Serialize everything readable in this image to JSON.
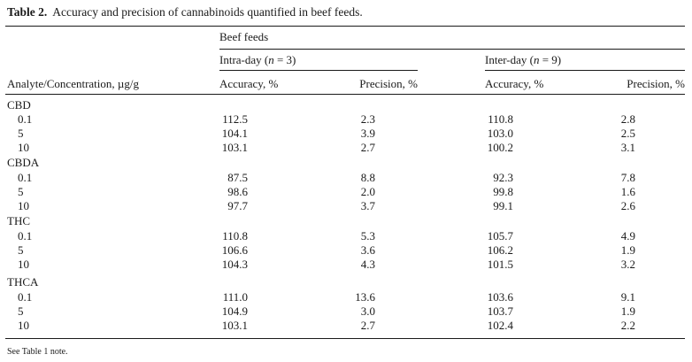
{
  "caption": {
    "label": "Table 2.",
    "text": "Accuracy and precision of cannabinoids quantified in beef feeds."
  },
  "header": {
    "group_label": "Beef feeds",
    "intra_prefix": "Intra-day (",
    "intra_n": "n",
    "intra_suffix": " = 3)",
    "inter_prefix": "Inter-day (",
    "inter_n": "n",
    "inter_suffix": " = 9)",
    "analyte_col": "Analyte/Concentration, µg/g",
    "accuracy": "Accuracy, %",
    "precision": "Precision, %"
  },
  "groups": [
    {
      "name": "CBD",
      "rows": [
        {
          "conc": "0.1",
          "intra_acc": "112.5",
          "intra_prec": "2.3",
          "inter_acc": "110.8",
          "inter_prec": "2.8"
        },
        {
          "conc": "5",
          "intra_acc": "104.1",
          "intra_prec": "3.9",
          "inter_acc": "103.0",
          "inter_prec": "2.5"
        },
        {
          "conc": "10",
          "intra_acc": "103.1",
          "intra_prec": "2.7",
          "inter_acc": "100.2",
          "inter_prec": "3.1"
        }
      ]
    },
    {
      "name": "CBDA",
      "rows": [
        {
          "conc": "0.1",
          "intra_acc": "87.5",
          "intra_prec": "8.8",
          "inter_acc": "92.3",
          "inter_prec": "7.8"
        },
        {
          "conc": "5",
          "intra_acc": "98.6",
          "intra_prec": "2.0",
          "inter_acc": "99.8",
          "inter_prec": "1.6"
        },
        {
          "conc": "10",
          "intra_acc": "97.7",
          "intra_prec": "3.7",
          "inter_acc": "99.1",
          "inter_prec": "2.6"
        }
      ]
    },
    {
      "name": "THC",
      "rows": [
        {
          "conc": "0.1",
          "intra_acc": "110.8",
          "intra_prec": "5.3",
          "inter_acc": "105.7",
          "inter_prec": "4.9"
        },
        {
          "conc": "5",
          "intra_acc": "106.6",
          "intra_prec": "3.6",
          "inter_acc": "106.2",
          "inter_prec": "1.9"
        },
        {
          "conc": "10",
          "intra_acc": "104.3",
          "intra_prec": "4.3",
          "inter_acc": "101.5",
          "inter_prec": "3.2"
        }
      ]
    },
    {
      "name": "THCA",
      "rows": [
        {
          "conc": "0.1",
          "intra_acc": "111.0",
          "intra_prec": "13.6",
          "inter_acc": "103.6",
          "inter_prec": "9.1"
        },
        {
          "conc": "5",
          "intra_acc": "104.9",
          "intra_prec": "3.0",
          "inter_acc": "103.7",
          "inter_prec": "1.9"
        },
        {
          "conc": "10",
          "intra_acc": "103.1",
          "intra_prec": "2.7",
          "inter_acc": "102.4",
          "inter_prec": "2.2"
        }
      ]
    }
  ],
  "note": "See Table 1 note."
}
